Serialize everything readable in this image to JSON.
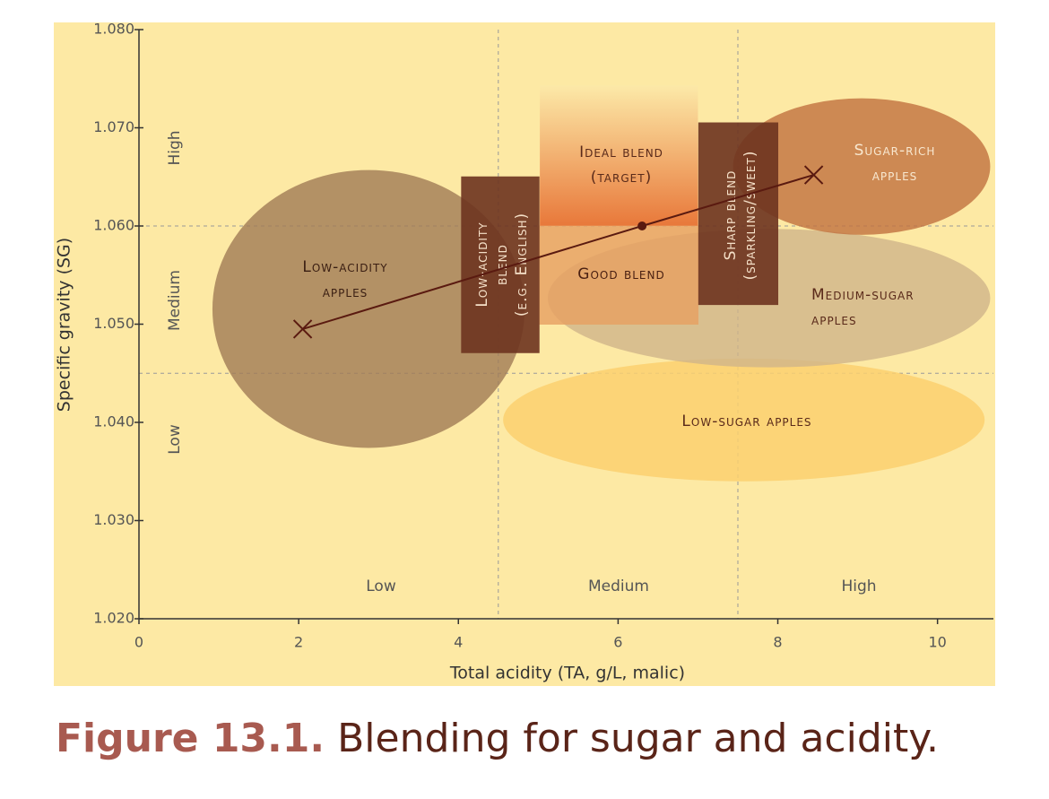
{
  "chart_data": {
    "type": "scatter",
    "xlabel": "Total acidity (TA, g/L, malic)",
    "ylabel": "Specific gravity (SG)",
    "xlim": [
      0,
      10.7
    ],
    "ylim": [
      1.02,
      1.08
    ],
    "xticks": [
      0,
      2,
      4,
      6,
      8,
      10
    ],
    "yticks": [
      {
        "value": 1.02,
        "label": "1.020"
      },
      {
        "value": 1.03,
        "label": "1.030"
      },
      {
        "value": 1.04,
        "label": "1.040"
      },
      {
        "value": 1.05,
        "label": "1.050"
      },
      {
        "value": 1.06,
        "label": "1.060"
      },
      {
        "value": 1.07,
        "label": "1.070"
      },
      {
        "value": 1.08,
        "label": "1.080"
      }
    ],
    "x_thresholds": [
      4.5,
      7.5
    ],
    "y_thresholds": [
      1.06,
      1.045
    ],
    "x_zones": [
      "Low",
      "Medium",
      "High"
    ],
    "y_zones": [
      "High",
      "Medium",
      "Low"
    ],
    "regions": [
      {
        "label": [
          "Low-sugar apples"
        ],
        "shape": "ellipse",
        "x_range": [
          4.56,
          10.59
        ],
        "y_range": [
          1.034,
          1.0465
        ],
        "color": "#fcd070",
        "opacity": 0.85
      },
      {
        "label": [
          "Medium-sugar",
          "apples"
        ],
        "shape": "ellipse",
        "x_range": [
          5.12,
          10.66
        ],
        "y_range": [
          1.0456,
          1.0597
        ],
        "color": "#cfb48a",
        "opacity": 0.8
      },
      {
        "label": [
          "Low-acidity",
          "apples"
        ],
        "shape": "ellipse",
        "x_range": [
          0.92,
          4.83
        ],
        "y_range": [
          1.0374,
          1.0657
        ],
        "color": "#a07a55",
        "opacity": 0.8
      },
      {
        "label": [
          "Sugar-rich",
          "apples"
        ],
        "shape": "ellipse",
        "x_range": [
          7.44,
          10.66
        ],
        "y_range": [
          1.0591,
          1.073
        ],
        "color": "#c0703f",
        "opacity": 0.8
      },
      {
        "label": [
          "Ideal blend",
          "(target)"
        ],
        "shape": "gradient",
        "x_range": [
          5.02,
          7.0
        ],
        "y_range": [
          1.06,
          1.0743
        ],
        "color": "#e8783a",
        "opacity": 1
      },
      {
        "label": [
          "Good blend"
        ],
        "shape": "rect",
        "x_range": [
          5.02,
          7.0
        ],
        "y_range": [
          1.05,
          1.06
        ],
        "color": "#e7a062",
        "opacity": 0.8
      },
      {
        "label": [
          "Low-acidity",
          "blend",
          "(e.g. English)"
        ],
        "shape": "rect",
        "x_range": [
          4.04,
          5.01
        ],
        "y_range": [
          1.0471,
          1.065
        ],
        "color": "#6e3420",
        "opacity": 0.9
      },
      {
        "label": [
          "Sharp blend",
          "(sparkling/sweet)"
        ],
        "shape": "rect",
        "x_range": [
          7.01,
          8.0
        ],
        "y_range": [
          1.052,
          1.0705
        ],
        "color": "#6e3420",
        "opacity": 0.9
      }
    ],
    "series": [
      {
        "x": [
          2.05,
          6.3,
          8.45
        ],
        "values": [
          1.0495,
          1.06,
          1.0652
        ],
        "color": "#5a1a10",
        "markers": [
          "cross",
          "dot",
          "cross"
        ]
      }
    ]
  },
  "caption": {
    "label": "Figure 13.1.",
    "text": "Blending for sugar and acidity."
  }
}
